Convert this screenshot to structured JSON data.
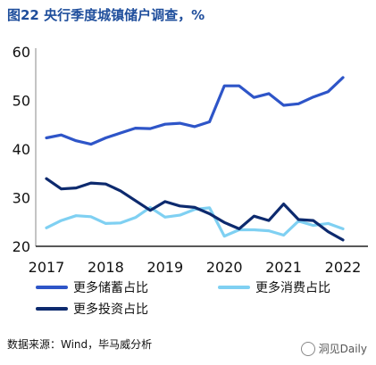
{
  "title": "图22  央行季度城镇储户调查，%",
  "colors": {
    "title": "#1f4e9c",
    "savings": "#2e55c8",
    "consumption": "#7fd0f2",
    "investment": "#0d2a6e"
  },
  "legend": {
    "savings": "更多储蓄占比",
    "consumption": "更多消费占比",
    "investment": "更多投资占比"
  },
  "source": "数据来源：Wind，毕马威分析",
  "watermark": "洞见Daily",
  "chart_data": {
    "type": "line",
    "title": "图22  央行季度城镇储户调查，%",
    "xlabel": "",
    "ylabel": "",
    "x_tick_labels": [
      "2017",
      "2018",
      "2019",
      "2020",
      "2021",
      "2022"
    ],
    "y_tick_labels": [
      "20",
      "30",
      "40",
      "50",
      "60"
    ],
    "xlim": [
      2017.0,
      2022.0
    ],
    "ylim": [
      20,
      60
    ],
    "grid": false,
    "legend_position": "bottom",
    "x": [
      2017.0,
      2017.25,
      2017.5,
      2017.75,
      2018.0,
      2018.25,
      2018.5,
      2018.75,
      2019.0,
      2019.25,
      2019.5,
      2019.75,
      2020.0,
      2020.25,
      2020.5,
      2020.75,
      2021.0,
      2021.25,
      2021.5,
      2021.75,
      2022.0
    ],
    "series": [
      {
        "name": "更多储蓄占比",
        "color": "#2e55c8",
        "values": [
          42.3,
          42.9,
          41.7,
          41.0,
          42.3,
          43.3,
          44.3,
          44.2,
          45.1,
          45.3,
          44.6,
          45.6,
          53.0,
          53.0,
          50.6,
          51.4,
          49.0,
          49.3,
          50.7,
          51.8,
          54.7
        ]
      },
      {
        "name": "更多消费占比",
        "color": "#7fd0f2",
        "values": [
          23.8,
          25.3,
          26.3,
          26.1,
          24.7,
          24.8,
          25.9,
          28.0,
          26.0,
          26.4,
          27.6,
          27.9,
          22.1,
          23.4,
          23.4,
          23.2,
          22.3,
          25.2,
          24.3,
          24.7,
          23.6
        ]
      },
      {
        "name": "更多投资占比",
        "color": "#0d2a6e",
        "values": [
          33.9,
          31.8,
          32.0,
          33.0,
          32.8,
          31.4,
          29.4,
          27.4,
          29.2,
          28.3,
          28.0,
          26.7,
          24.9,
          23.6,
          26.2,
          25.3,
          28.7,
          25.5,
          25.3,
          23.0,
          21.3
        ]
      }
    ]
  }
}
